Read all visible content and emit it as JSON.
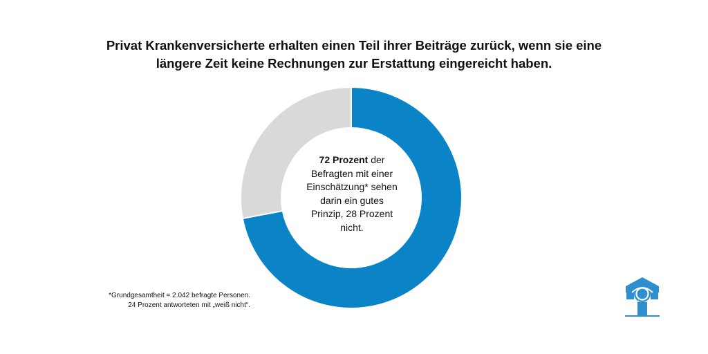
{
  "title": {
    "line1": "Privat Krankenversicherte erhalten einen Teil ihrer Beiträge zurück, wenn sie eine",
    "line2": "längere Zeit keine Rechnungen zur Erstattung eingereicht haben."
  },
  "center_label": {
    "bold": "72 Prozent",
    "rest": " der Befragten mit einer Einschätzung* sehen darin ein gutes Prinzip, 28 Prozent nicht."
  },
  "footnote": {
    "line1": "*Grundgesamtheit = 2.042 befragte Personen.",
    "line2": "24 Prozent antworteten mit „weiß nicht“."
  },
  "colors": {
    "primary": "#0a84c6",
    "secondary": "#d9d9d9"
  },
  "logo_icon": "person-shield-logo-icon",
  "chart_data": {
    "type": "pie",
    "variant": "donut",
    "categories": [
      "gutes Prinzip",
      "nicht"
    ],
    "values": [
      72,
      28
    ],
    "unit": "%",
    "colors": [
      "#0a84c6",
      "#d9d9d9"
    ]
  }
}
